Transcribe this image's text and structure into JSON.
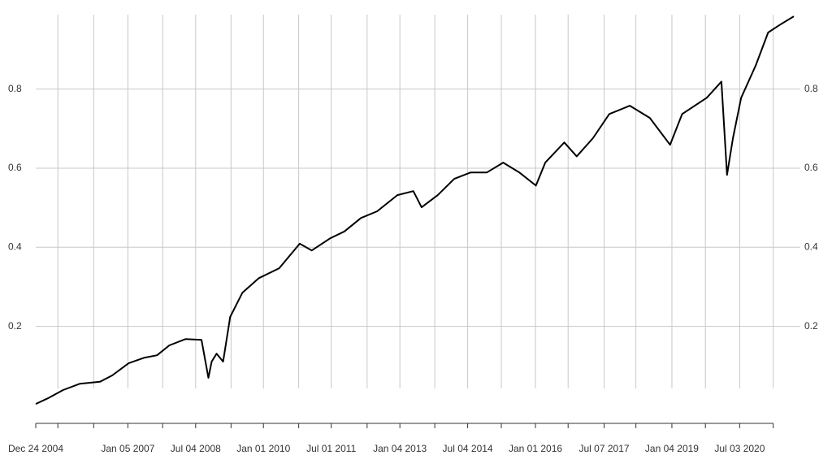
{
  "chart_data": {
    "type": "line",
    "x": [
      "2004-12-24",
      "2005-03-31",
      "2005-08-01",
      "2005-12-15",
      "2006-05-25",
      "2006-09-01",
      "2007-01-12",
      "2007-05-20",
      "2007-08-28",
      "2007-12-05",
      "2008-04-15",
      "2008-08-20",
      "2008-10-15",
      "2008-11-10",
      "2008-12-20",
      "2009-02-10",
      "2009-04-08",
      "2009-07-15",
      "2009-11-25",
      "2010-05-08",
      "2010-10-20",
      "2011-01-25",
      "2011-06-25",
      "2011-10-15",
      "2012-02-25",
      "2012-07-05",
      "2012-12-15",
      "2013-04-22",
      "2013-06-28",
      "2013-11-05",
      "2014-03-18",
      "2014-07-26",
      "2014-12-05",
      "2015-04-16",
      "2015-08-25",
      "2016-01-05",
      "2016-03-20",
      "2016-08-20",
      "2016-11-28",
      "2017-04-08",
      "2017-08-18",
      "2018-01-30",
      "2018-07-10",
      "2018-12-20",
      "2019-03-28",
      "2019-10-12",
      "2020-02-07",
      "2020-03-23",
      "2020-05-10",
      "2020-07-15",
      "2020-11-10",
      "2021-02-17",
      "2021-05-25",
      "2021-09-12"
    ],
    "series": [
      {
        "color": "#000000",
        "values": [
          0.004,
          0.018,
          0.039,
          0.055,
          0.06,
          0.076,
          0.107,
          0.121,
          0.127,
          0.152,
          0.168,
          0.166,
          0.07,
          0.111,
          0.131,
          0.111,
          0.224,
          0.285,
          0.322,
          0.347,
          0.409,
          0.392,
          0.423,
          0.44,
          0.474,
          0.491,
          0.532,
          0.542,
          0.501,
          0.532,
          0.573,
          0.589,
          0.589,
          0.614,
          0.589,
          0.556,
          0.614,
          0.665,
          0.63,
          0.676,
          0.737,
          0.758,
          0.727,
          0.659,
          0.737,
          0.778,
          0.819,
          0.583,
          0.676,
          0.778,
          0.86,
          0.943,
          0.963,
          0.984
        ]
      }
    ],
    "xlim": [
      "2004-12-24",
      "2021-09-12"
    ],
    "xticks": [
      {
        "value": "2004-12-24",
        "label": "Dec 24 2004"
      },
      {
        "value": "2005-06-20",
        "label": null
      },
      {
        "value": "2006-04-05",
        "label": null
      },
      {
        "value": "2007-01-05",
        "label": "Jan 05 2007"
      },
      {
        "value": "2007-10-12",
        "label": null
      },
      {
        "value": "2008-07-04",
        "label": "Jul 04 2008"
      },
      {
        "value": "2009-04-15",
        "label": null
      },
      {
        "value": "2010-01-01",
        "label": "Jan 01 2010"
      },
      {
        "value": "2010-10-12",
        "label": null
      },
      {
        "value": "2011-07-01",
        "label": "Jul 01 2011"
      },
      {
        "value": "2012-04-15",
        "label": null
      },
      {
        "value": "2013-01-04",
        "label": "Jan 04 2013"
      },
      {
        "value": "2013-10-12",
        "label": null
      },
      {
        "value": "2014-07-04",
        "label": "Jul 04 2014"
      },
      {
        "value": "2015-04-01",
        "label": null
      },
      {
        "value": "2016-01-01",
        "label": "Jan 01 2016"
      },
      {
        "value": "2016-09-20",
        "label": null
      },
      {
        "value": "2017-07-07",
        "label": "Jul 07 2017"
      },
      {
        "value": "2018-03-20",
        "label": null
      },
      {
        "value": "2019-01-04",
        "label": "Jan 04 2019"
      },
      {
        "value": "2019-10-01",
        "label": null
      },
      {
        "value": "2020-07-03",
        "label": "Jul 03 2020"
      },
      {
        "value": "2021-03-30",
        "label": null
      }
    ],
    "ylim": [
      0,
      0.98
    ],
    "yticks": [
      0.2,
      0.4,
      0.6,
      0.8
    ],
    "grid": true
  }
}
